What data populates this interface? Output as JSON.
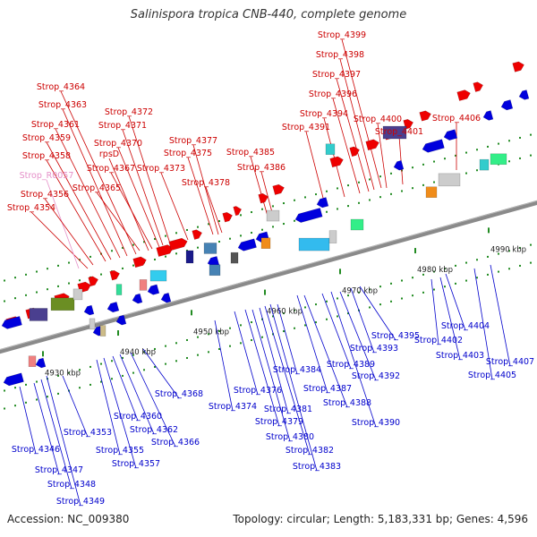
{
  "title": "Salinispora tropica CNB-440, complete genome",
  "footer": {
    "accession": "Accession: NC_009380",
    "summary": "Topology: circular; Length: 5,183,331 bp; Genes: 4,596"
  },
  "colors": {
    "forward_label": "#cc0000",
    "reverse_label": "#0000cc",
    "rna_label": "#e58fc8",
    "forward_gene": "#ee0000",
    "reverse_gene": "#0000dd",
    "backbone": "#888888",
    "ticks": "#228b22"
  },
  "ticks": [
    "4930 kbp",
    "4940 kbp",
    "4950 kbp",
    "4960 kbp",
    "4970 kbp",
    "4980 kbp",
    "4990 kbp"
  ],
  "forward_labels": [
    "Strop_4354",
    "Strop_R0057",
    "Strop_4356",
    "Strop_4358",
    "Strop_4359",
    "Strop_4361",
    "Strop_4363",
    "Strop_4364",
    "Strop_4365",
    "rpsD",
    "Strop_4367",
    "Strop_4370",
    "Strop_4371",
    "Strop_4372",
    "Strop_4373",
    "Strop_4375",
    "Strop_4377",
    "Strop_4378",
    "Strop_4386",
    "Strop_4385",
    "Strop_4391",
    "Strop_4394",
    "Strop_4396",
    "Strop_4397",
    "Strop_4398",
    "Strop_4399",
    "Strop_4400",
    "Strop_4401",
    "Strop_4406"
  ],
  "reverse_labels": [
    "Strop_4346",
    "Strop_4347",
    "Strop_4348",
    "Strop_4349",
    "Strop_4353",
    "Strop_4355",
    "Strop_4357",
    "Strop_4360",
    "Strop_4362",
    "Strop_4366",
    "Strop_4368",
    "Strop_4374",
    "Strop_4376",
    "Strop_4379",
    "Strop_4380",
    "Strop_4381",
    "Strop_4382",
    "Strop_4383",
    "Strop_4384",
    "Strop_4387",
    "Strop_4388",
    "Strop_4389",
    "Strop_4390",
    "Strop_4392",
    "Strop_4393",
    "Strop_4395",
    "Strop_4402",
    "Strop_4403",
    "Strop_4404",
    "Strop_4405",
    "Strop_4407"
  ]
}
